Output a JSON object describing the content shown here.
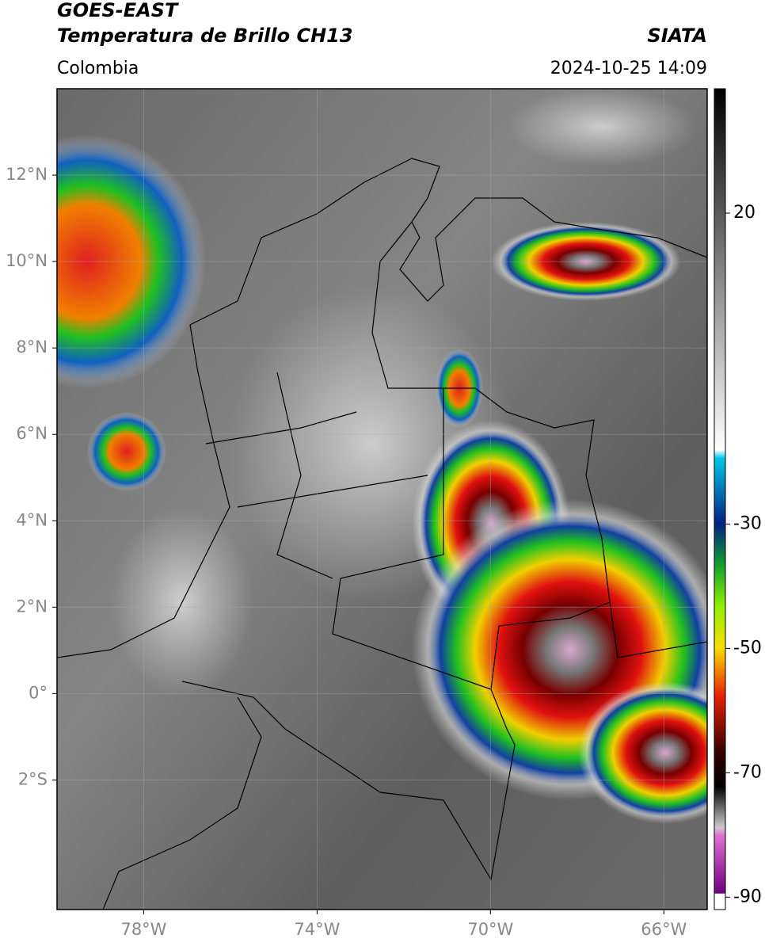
{
  "header": {
    "title": "GOES-EAST",
    "subtitle": "Temperatura de Brillo CH13",
    "source": "SIATA",
    "region": "Colombia",
    "datetime": "2024-10-25 14:09"
  },
  "map": {
    "xlim": [
      -80,
      -65
    ],
    "ylim": [
      -5,
      14
    ],
    "xticks": [
      {
        "value": -78,
        "label": "78°W"
      },
      {
        "value": -74,
        "label": "74°W"
      },
      {
        "value": -70,
        "label": "70°W"
      },
      {
        "value": -66,
        "label": "66°W"
      }
    ],
    "yticks": [
      {
        "value": 12,
        "label": "12°N"
      },
      {
        "value": 10,
        "label": "10°N"
      },
      {
        "value": 8,
        "label": "8°N"
      },
      {
        "value": 6,
        "label": "6°N"
      },
      {
        "value": 4,
        "label": "4°N"
      },
      {
        "value": 2,
        "label": "2°N"
      },
      {
        "value": 0,
        "label": "0°"
      },
      {
        "value": -2,
        "label": "2°S"
      }
    ],
    "grid": true
  },
  "colorbar": {
    "clim": [
      -92,
      40
    ],
    "ticks": [
      20,
      -30,
      -50,
      -70,
      -90
    ]
  }
}
